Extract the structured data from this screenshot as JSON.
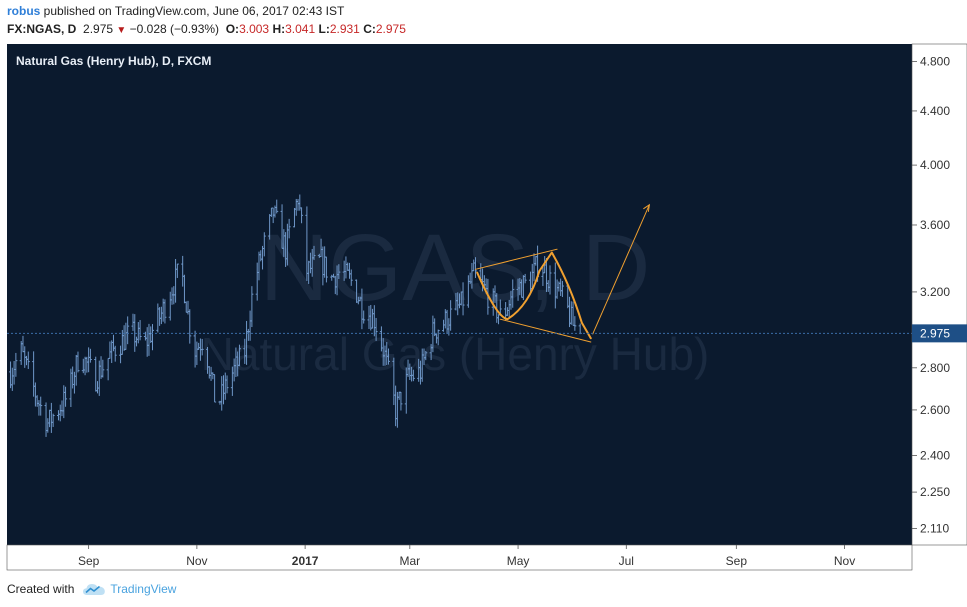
{
  "header": {
    "author": "robus",
    "published_text": " published on TradingView.com, June 06, 2017 02:43 IST",
    "symbol": "FX:NGAS, D",
    "last": "2.975",
    "change": "−0.028 (−0.93%)",
    "open_label": "O:",
    "open": "3.003",
    "high_label": "H:",
    "high": "3.041",
    "low_label": "L:",
    "low": "2.931",
    "close_label": "C:",
    "close": "2.975"
  },
  "chart": {
    "title": "Natural Gas (Henry Hub), D, FXCM",
    "watermark_symbol": "NGAS, D",
    "watermark_name": "Natural Gas (Henry Hub)"
  },
  "footer": {
    "created_with": "Created with",
    "brand": "TradingView",
    "logo_icon": "tradingview-cloud-icon"
  },
  "colors": {
    "background": "#0b1a2e",
    "candle": "#6f97c8",
    "annotation": "#f0a030",
    "price_line": "#3a6da8",
    "price_label_bg": "#1e4f86"
  },
  "chart_data": {
    "type": "line",
    "scale": "log",
    "y_ticks": [
      4.8,
      4.4,
      4.0,
      3.6,
      3.2,
      2.8,
      2.6,
      2.4,
      2.25,
      2.11
    ],
    "y_tick_labels": [
      "4.800",
      "4.400",
      "4.000",
      "3.600",
      "3.200",
      "2.800",
      "2.600",
      "2.400",
      "2.250",
      "2.110"
    ],
    "x_tick_labels": [
      "Sep",
      "Nov",
      "2017",
      "Mar",
      "May",
      "Jul",
      "Sep",
      "Nov"
    ],
    "x_tick_bold": [
      false,
      false,
      true,
      false,
      false,
      false,
      false,
      false
    ],
    "x_tick_dates": [
      "2016-09-01",
      "2016-11-01",
      "2017-01-01",
      "2017-03-01",
      "2017-05-01",
      "2017-07-01",
      "2017-09-01",
      "2017-11-01"
    ],
    "x_range": [
      "2016-07-17",
      "2017-12-09"
    ],
    "y_range": [
      2.05,
      4.95
    ],
    "current_price": 2.975,
    "current_price_label": "2.975",
    "anchors": [
      [
        "2016-07-19",
        2.78
      ],
      [
        "2016-07-25",
        2.88
      ],
      [
        "2016-08-03",
        2.65
      ],
      [
        "2016-08-09",
        2.54
      ],
      [
        "2016-08-20",
        2.66
      ],
      [
        "2016-08-27",
        2.87
      ],
      [
        "2016-09-05",
        2.75
      ],
      [
        "2016-09-15",
        2.89
      ],
      [
        "2016-09-25",
        2.98
      ],
      [
        "2016-10-03",
        2.92
      ],
      [
        "2016-10-12",
        3.08
      ],
      [
        "2016-10-23",
        3.34
      ],
      [
        "2016-10-30",
        2.88
      ],
      [
        "2016-11-05",
        2.95
      ],
      [
        "2016-11-12",
        2.61
      ],
      [
        "2016-11-20",
        2.76
      ],
      [
        "2016-11-28",
        2.88
      ],
      [
        "2016-12-03",
        3.24
      ],
      [
        "2016-12-14",
        3.68
      ],
      [
        "2016-12-21",
        3.45
      ],
      [
        "2016-12-28",
        3.78
      ],
      [
        "2017-01-02",
        3.32
      ],
      [
        "2017-01-10",
        3.38
      ],
      [
        "2017-01-16",
        3.28
      ],
      [
        "2017-01-21",
        3.32
      ],
      [
        "2017-01-28",
        3.25
      ],
      [
        "2017-02-02",
        3.12
      ],
      [
        "2017-02-09",
        3.05
      ],
      [
        "2017-02-15",
        2.86
      ],
      [
        "2017-02-21",
        2.6
      ],
      [
        "2017-02-28",
        2.75
      ],
      [
        "2017-03-07",
        2.78
      ],
      [
        "2017-03-14",
        2.98
      ],
      [
        "2017-03-22",
        3.05
      ],
      [
        "2017-03-30",
        3.13
      ],
      [
        "2017-04-06",
        3.3
      ],
      [
        "2017-04-13",
        3.2
      ],
      [
        "2017-04-22",
        3.05
      ],
      [
        "2017-04-29",
        3.22
      ],
      [
        "2017-05-07",
        3.25
      ],
      [
        "2017-05-13",
        3.38
      ],
      [
        "2017-05-20",
        3.25
      ],
      [
        "2017-05-27",
        3.15
      ],
      [
        "2017-06-01",
        3.02
      ],
      [
        "2017-06-05",
        2.975
      ]
    ]
  }
}
